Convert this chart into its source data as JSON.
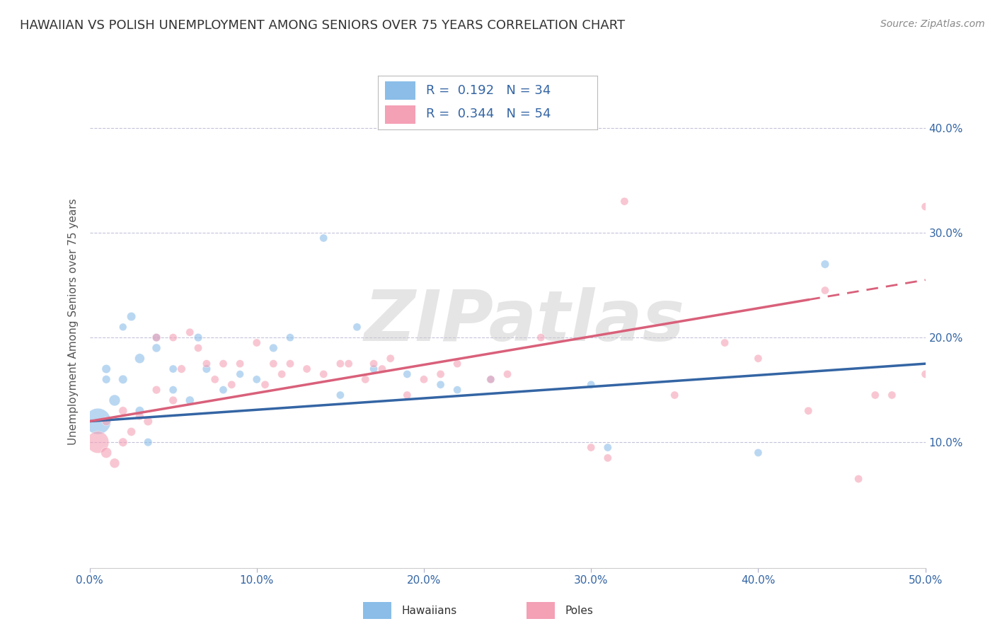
{
  "title": "HAWAIIAN VS POLISH UNEMPLOYMENT AMONG SENIORS OVER 75 YEARS CORRELATION CHART",
  "source": "Source: ZipAtlas.com",
  "ylabel": "Unemployment Among Seniors over 75 years",
  "xlim": [
    0.0,
    0.5
  ],
  "ylim": [
    -0.02,
    0.45
  ],
  "xticks": [
    0.0,
    0.1,
    0.2,
    0.3,
    0.4,
    0.5
  ],
  "yticks": [
    0.1,
    0.2,
    0.3,
    0.4
  ],
  "xticklabels": [
    "0.0%",
    "10.0%",
    "20.0%",
    "30.0%",
    "40.0%",
    "50.0%"
  ],
  "yticklabels_right": [
    "10.0%",
    "20.0%",
    "30.0%",
    "40.0%"
  ],
  "legend1_r": "0.192",
  "legend1_n": "34",
  "legend2_r": "0.344",
  "legend2_n": "54",
  "hawaiian_color": "#8BBDE8",
  "polish_color": "#F4A0B5",
  "line_hawaiian": "#3465A4",
  "line_polish": "#D9607A",
  "watermark": "ZIPatlas",
  "hawaiian_x": [
    0.005,
    0.01,
    0.01,
    0.015,
    0.02,
    0.02,
    0.025,
    0.03,
    0.03,
    0.035,
    0.04,
    0.04,
    0.05,
    0.05,
    0.06,
    0.065,
    0.07,
    0.08,
    0.09,
    0.1,
    0.11,
    0.12,
    0.14,
    0.15,
    0.16,
    0.17,
    0.19,
    0.21,
    0.22,
    0.24,
    0.3,
    0.31,
    0.4,
    0.44
  ],
  "hawaiian_y": [
    0.12,
    0.17,
    0.16,
    0.14,
    0.16,
    0.21,
    0.22,
    0.18,
    0.13,
    0.1,
    0.2,
    0.19,
    0.17,
    0.15,
    0.14,
    0.2,
    0.17,
    0.15,
    0.165,
    0.16,
    0.19,
    0.2,
    0.295,
    0.145,
    0.21,
    0.17,
    0.165,
    0.155,
    0.15,
    0.16,
    0.155,
    0.095,
    0.09,
    0.27
  ],
  "hawaiian_size": [
    700,
    80,
    70,
    130,
    80,
    60,
    80,
    100,
    80,
    70,
    70,
    75,
    65,
    65,
    75,
    70,
    70,
    65,
    60,
    65,
    70,
    65,
    65,
    65,
    65,
    65,
    65,
    65,
    65,
    65,
    65,
    65,
    65,
    70
  ],
  "polish_x": [
    0.005,
    0.01,
    0.01,
    0.015,
    0.02,
    0.02,
    0.025,
    0.03,
    0.035,
    0.04,
    0.04,
    0.05,
    0.05,
    0.055,
    0.06,
    0.065,
    0.07,
    0.075,
    0.08,
    0.085,
    0.09,
    0.1,
    0.105,
    0.11,
    0.115,
    0.12,
    0.13,
    0.14,
    0.15,
    0.155,
    0.165,
    0.17,
    0.175,
    0.18,
    0.19,
    0.2,
    0.21,
    0.22,
    0.24,
    0.25,
    0.27,
    0.3,
    0.31,
    0.32,
    0.35,
    0.38,
    0.4,
    0.43,
    0.44,
    0.46,
    0.47,
    0.48,
    0.5,
    0.5
  ],
  "polish_y": [
    0.1,
    0.09,
    0.12,
    0.08,
    0.1,
    0.13,
    0.11,
    0.125,
    0.12,
    0.15,
    0.2,
    0.14,
    0.2,
    0.17,
    0.205,
    0.19,
    0.175,
    0.16,
    0.175,
    0.155,
    0.175,
    0.195,
    0.155,
    0.175,
    0.165,
    0.175,
    0.17,
    0.165,
    0.175,
    0.175,
    0.16,
    0.175,
    0.17,
    0.18,
    0.145,
    0.16,
    0.165,
    0.175,
    0.16,
    0.165,
    0.2,
    0.095,
    0.085,
    0.33,
    0.145,
    0.195,
    0.18,
    0.13,
    0.245,
    0.065,
    0.145,
    0.145,
    0.165,
    0.325
  ],
  "polish_size": [
    500,
    120,
    80,
    100,
    80,
    75,
    75,
    70,
    80,
    70,
    70,
    70,
    65,
    70,
    65,
    65,
    65,
    65,
    65,
    65,
    65,
    65,
    65,
    65,
    65,
    65,
    65,
    65,
    65,
    65,
    65,
    65,
    65,
    65,
    65,
    65,
    65,
    65,
    65,
    65,
    65,
    65,
    65,
    65,
    65,
    65,
    65,
    65,
    65,
    65,
    65,
    65,
    65,
    65
  ],
  "line_h_x0": 0.0,
  "line_h_x1": 0.5,
  "line_h_y0": 0.12,
  "line_h_y1": 0.175,
  "line_p_x0": 0.0,
  "line_p_x1": 0.5,
  "line_p_y0": 0.12,
  "line_p_y1": 0.255,
  "line_p_solid_end": 0.43
}
